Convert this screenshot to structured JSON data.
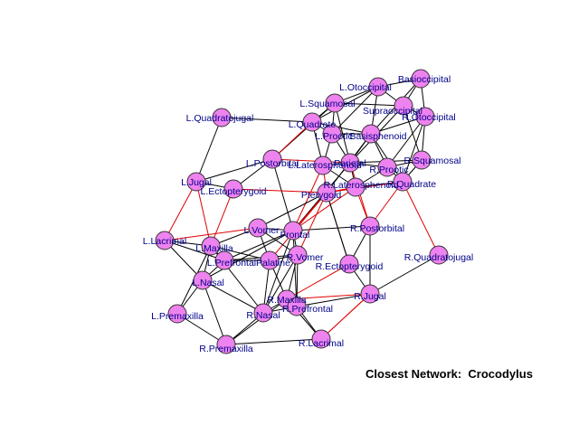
{
  "caption": "Closest Network:  Crocodylus",
  "colors": {
    "node_fill": "#ee82ee",
    "label": "#00008b",
    "edge": "#000000",
    "highlight_edge": "#e00000"
  },
  "nodes": [
    {
      "id": "Basioccipital",
      "label": "Basioccipital"
    },
    {
      "id": "LOtoccipital",
      "label": "L.Otoccipital"
    },
    {
      "id": "Supraoccipital",
      "label": "Supraoccipital"
    },
    {
      "id": "ROtoccipital",
      "label": "R.Otoccipital"
    },
    {
      "id": "LSquamosal",
      "label": "L.Squamosal"
    },
    {
      "id": "LQuadratojugal",
      "label": "L.Quadratojugal"
    },
    {
      "id": "LQuadrate",
      "label": "L.Quadrate"
    },
    {
      "id": "LProotic",
      "label": "L.Prootic"
    },
    {
      "id": "Basisphenoid",
      "label": "Basisphenoid"
    },
    {
      "id": "RSquamosal",
      "label": "R.Squamosal"
    },
    {
      "id": "LPostorbital",
      "label": "L.Postorbital"
    },
    {
      "id": "LLaterosphenoid",
      "label": "L.Laterosphenoid"
    },
    {
      "id": "Parietal",
      "label": "Parietal"
    },
    {
      "id": "RProotic",
      "label": "R.Prootic"
    },
    {
      "id": "LJugal",
      "label": "L.Jugal"
    },
    {
      "id": "LEctopterygoid",
      "label": "L.Ectopterygoid"
    },
    {
      "id": "Pterygoid",
      "label": "Pterygoid"
    },
    {
      "id": "RLaterosphenoid",
      "label": "R.Laterosphenoid"
    },
    {
      "id": "RQuadrate",
      "label": "R.Quadrate"
    },
    {
      "id": "LVomer",
      "label": "L.Vomer"
    },
    {
      "id": "Frontal",
      "label": "Frontal"
    },
    {
      "id": "RPostorbital",
      "label": "R.Postorbital"
    },
    {
      "id": "LLacrimal",
      "label": "L.Lacrimal"
    },
    {
      "id": "LMaxilla",
      "label": "L.Maxilla"
    },
    {
      "id": "LPrefrontal",
      "label": "L.Prefrontal"
    },
    {
      "id": "Palatine",
      "label": "Palatine"
    },
    {
      "id": "RVomer",
      "label": "R.Vomer"
    },
    {
      "id": "RQuadratojugal",
      "label": "R.Quadratojugal"
    },
    {
      "id": "REctopterygoid",
      "label": "R.Ectopterygoid"
    },
    {
      "id": "LNasal",
      "label": "L.Nasal"
    },
    {
      "id": "RMaxilla",
      "label": "R.Maxilla"
    },
    {
      "id": "RPrefrontal",
      "label": "R.Prefrontal"
    },
    {
      "id": "RJugal",
      "label": "R.Jugal"
    },
    {
      "id": "LPremaxilla",
      "label": "L.Premaxilla"
    },
    {
      "id": "RNasal",
      "label": "R.Nasal"
    },
    {
      "id": "RLacrimal",
      "label": "R.Lacrimal"
    },
    {
      "id": "RPremaxilla",
      "label": "R.Premaxilla"
    }
  ],
  "edges": [
    [
      "LOtoccipital",
      "Basioccipital",
      0
    ],
    [
      "LOtoccipital",
      "Supraoccipital",
      0
    ],
    [
      "LOtoccipital",
      "LSquamosal",
      0
    ],
    [
      "LOtoccipital",
      "LQuadrate",
      0
    ],
    [
      "LOtoccipital",
      "Basisphenoid",
      0
    ],
    [
      "LOtoccipital",
      "LProotic",
      0
    ],
    [
      "Basioccipital",
      "ROtoccipital",
      0
    ],
    [
      "Basioccipital",
      "Supraoccipital",
      0
    ],
    [
      "Basioccipital",
      "Basisphenoid",
      0
    ],
    [
      "Supraoccipital",
      "ROtoccipital",
      0
    ],
    [
      "Supraoccipital",
      "Parietal",
      0
    ],
    [
      "Supraoccipital",
      "LSquamosal",
      0
    ],
    [
      "Supraoccipital",
      "RSquamosal",
      0
    ],
    [
      "ROtoccipital",
      "RSquamosal",
      0
    ],
    [
      "ROtoccipital",
      "RQuadrate",
      0
    ],
    [
      "ROtoccipital",
      "Basisphenoid",
      0
    ],
    [
      "ROtoccipital",
      "RProotic",
      0
    ],
    [
      "LSquamosal",
      "LQuadrate",
      0
    ],
    [
      "LSquamosal",
      "Parietal",
      0
    ],
    [
      "LSquamosal",
      "LPostorbital",
      0
    ],
    [
      "LSquamosal",
      "LProotic",
      0
    ],
    [
      "LQuadratojugal",
      "LQuadrate",
      0
    ],
    [
      "LQuadratojugal",
      "LJugal",
      0
    ],
    [
      "LQuadrate",
      "LProotic",
      0
    ],
    [
      "LQuadrate",
      "Basisphenoid",
      0
    ],
    [
      "LQuadrate",
      "LLaterosphenoid",
      0
    ],
    [
      "LQuadrate",
      "LPostorbital",
      1
    ],
    [
      "LProotic",
      "Basisphenoid",
      0
    ],
    [
      "LProotic",
      "Parietal",
      0
    ],
    [
      "LProotic",
      "LLaterosphenoid",
      0
    ],
    [
      "Basisphenoid",
      "Parietal",
      0
    ],
    [
      "Basisphenoid",
      "RProotic",
      0
    ],
    [
      "Basisphenoid",
      "Pterygoid",
      0
    ],
    [
      "Basisphenoid",
      "RQuadrate",
      0
    ],
    [
      "RSquamosal",
      "RQuadrate",
      0
    ],
    [
      "RSquamosal",
      "RProotic",
      0
    ],
    [
      "RSquamosal",
      "Parietal",
      0
    ],
    [
      "Parietal",
      "LLaterosphenoid",
      0
    ],
    [
      "Parietal",
      "RLaterosphenoid",
      0
    ],
    [
      "Parietal",
      "Frontal",
      0
    ],
    [
      "Parietal",
      "RProotic",
      0
    ],
    [
      "RProotic",
      "RLaterosphenoid",
      0
    ],
    [
      "RProotic",
      "RQuadrate",
      0
    ],
    [
      "LLaterosphenoid",
      "RLaterosphenoid",
      0
    ],
    [
      "LLaterosphenoid",
      "Pterygoid",
      1
    ],
    [
      "LLaterosphenoid",
      "Frontal",
      1
    ],
    [
      "RLaterosphenoid",
      "Pterygoid",
      1
    ],
    [
      "RLaterosphenoid",
      "Frontal",
      1
    ],
    [
      "RLaterosphenoid",
      "RQuadrate",
      0
    ],
    [
      "LPostorbital",
      "LJugal",
      0
    ],
    [
      "LPostorbital",
      "Frontal",
      0
    ],
    [
      "LPostorbital",
      "Parietal",
      1
    ],
    [
      "LPostorbital",
      "LEctopterygoid",
      0
    ],
    [
      "RQuadrate",
      "RPostorbital",
      1
    ],
    [
      "RQuadrate",
      "Pterygoid",
      1
    ],
    [
      "RQuadratojugal",
      "RQuadrate",
      1
    ],
    [
      "RQuadratojugal",
      "RJugal",
      0
    ],
    [
      "RPostorbital",
      "Frontal",
      0
    ],
    [
      "RPostorbital",
      "Parietal",
      1
    ],
    [
      "RPostorbital",
      "RJugal",
      0
    ],
    [
      "RPostorbital",
      "REctopterygoid",
      0
    ],
    [
      "RPostorbital",
      "RLaterosphenoid",
      1
    ],
    [
      "LJugal",
      "LEctopterygoid",
      0
    ],
    [
      "LJugal",
      "LLacrimal",
      1
    ],
    [
      "LJugal",
      "LMaxilla",
      1
    ],
    [
      "LEctopterygoid",
      "LMaxilla",
      1
    ],
    [
      "LEctopterygoid",
      "Pterygoid",
      1
    ],
    [
      "Pterygoid",
      "Palatine",
      1
    ],
    [
      "Pterygoid",
      "Frontal",
      1
    ],
    [
      "Pterygoid",
      "RVomer",
      1
    ],
    [
      "Pterygoid",
      "REctopterygoid",
      0
    ],
    [
      "Pterygoid",
      "LVomer",
      0
    ],
    [
      "REctopterygoid",
      "RJugal",
      0
    ],
    [
      "REctopterygoid",
      "RMaxilla",
      1
    ],
    [
      "REctopterygoid",
      "Pterygoid",
      0
    ],
    [
      "RJugal",
      "RLacrimal",
      1
    ],
    [
      "RJugal",
      "RMaxilla",
      1
    ],
    [
      "RJugal",
      "RPrefrontal",
      0
    ],
    [
      "Frontal",
      "LPrefrontal",
      0
    ],
    [
      "Frontal",
      "RPrefrontal",
      0
    ],
    [
      "Frontal",
      "LNasal",
      0
    ],
    [
      "Frontal",
      "RNasal",
      0
    ],
    [
      "Frontal",
      "LVomer",
      0
    ],
    [
      "Frontal",
      "RVomer",
      0
    ],
    [
      "LVomer",
      "RVomer",
      0
    ],
    [
      "LVomer",
      "Palatine",
      0
    ],
    [
      "LVomer",
      "LMaxilla",
      0
    ],
    [
      "LLacrimal",
      "LMaxilla",
      0
    ],
    [
      "LLacrimal",
      "LPrefrontal",
      0
    ],
    [
      "LLacrimal",
      "LNasal",
      0
    ],
    [
      "LMaxilla",
      "LPrefrontal",
      0
    ],
    [
      "LMaxilla",
      "LNasal",
      0
    ],
    [
      "LMaxilla",
      "Palatine",
      0
    ],
    [
      "LMaxilla",
      "LPremaxilla",
      0
    ],
    [
      "LMaxilla",
      "RNasal",
      0
    ],
    [
      "LPrefrontal",
      "LNasal",
      0
    ],
    [
      "LPrefrontal",
      "Palatine",
      0
    ],
    [
      "LPrefrontal",
      "RVomer",
      0
    ],
    [
      "Palatine",
      "RVomer",
      0
    ],
    [
      "Palatine",
      "RMaxilla",
      0
    ],
    [
      "Palatine",
      "RNasal",
      0
    ],
    [
      "RVomer",
      "RMaxilla",
      0
    ],
    [
      "RVomer",
      "RNasal",
      0
    ],
    [
      "RVomer",
      "RPrefrontal",
      0
    ],
    [
      "LNasal",
      "RNasal",
      0
    ],
    [
      "LNasal",
      "LPremaxilla",
      0
    ],
    [
      "LNasal",
      "RPremaxilla",
      0
    ],
    [
      "RMaxilla",
      "RPrefrontal",
      0
    ],
    [
      "RMaxilla",
      "RNasal",
      0
    ],
    [
      "RMaxilla",
      "RLacrimal",
      0
    ],
    [
      "RMaxilla",
      "RPremaxilla",
      0
    ],
    [
      "RNasal",
      "RPrefrontal",
      0
    ],
    [
      "RNasal",
      "RPremaxilla",
      0
    ],
    [
      "RPrefrontal",
      "RLacrimal",
      0
    ],
    [
      "LPremaxilla",
      "RPremaxilla",
      0
    ],
    [
      "RPremaxilla",
      "RLacrimal",
      0
    ],
    [
      "LLacrimal",
      "LVomer",
      1
    ],
    [
      "RLacrimal",
      "RJugal",
      1
    ]
  ]
}
